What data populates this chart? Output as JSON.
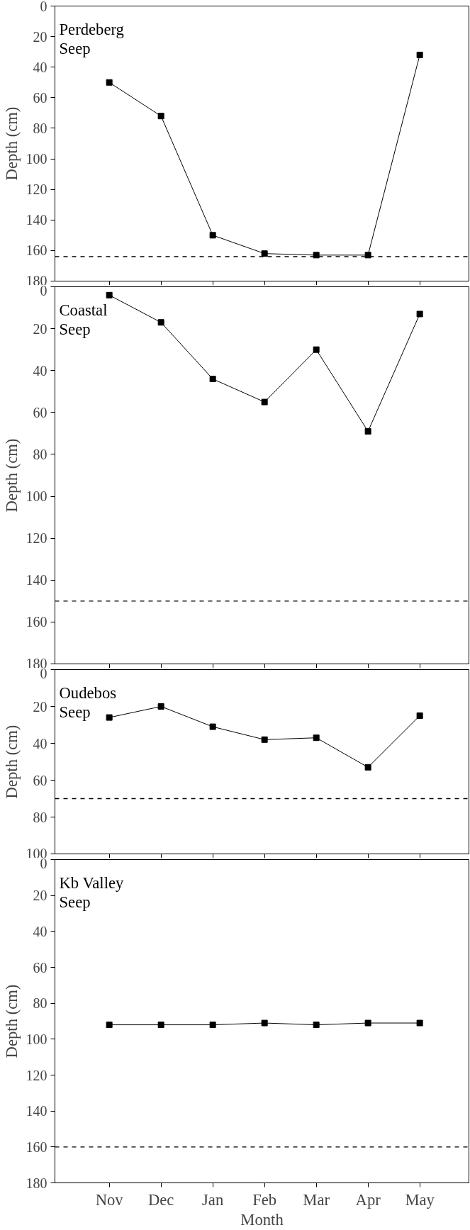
{
  "chart_data": [
    {
      "type": "line",
      "categories": [
        null,
        null,
        null,
        null,
        null,
        null,
        null
      ],
      "ylabel": "Depth (cm)",
      "annotations": [
        "Perdeberg\nSeep"
      ],
      "series": [
        {
          "color": "#000000",
          "values": [
            50,
            72,
            150,
            162,
            163,
            163,
            32
          ]
        }
      ],
      "ylim": [
        180,
        0
      ],
      "yticks": [
        0,
        20,
        40,
        60,
        80,
        100,
        120,
        140,
        160,
        180
      ],
      "ref_lines": [
        {
          "axis": "y",
          "value": 164,
          "line_style": "dashed",
          "color": "#000000"
        }
      ],
      "marker": "square",
      "grid": false,
      "tick_labels": "y"
    },
    {
      "type": "line",
      "categories": [
        null,
        null,
        null,
        null,
        null,
        null,
        null
      ],
      "ylabel": "Depth (cm)",
      "annotations": [
        "Coastal\nSeep"
      ],
      "series": [
        {
          "color": "#000000",
          "values": [
            4,
            17,
            44,
            55,
            30,
            69,
            13
          ]
        }
      ],
      "ylim": [
        180,
        0
      ],
      "yticks": [
        0,
        20,
        40,
        60,
        80,
        100,
        120,
        140,
        160,
        180
      ],
      "ref_lines": [
        {
          "axis": "y",
          "value": 150,
          "line_style": "dashed",
          "color": "#000000"
        }
      ],
      "marker": "square",
      "grid": false,
      "tick_labels": "y"
    },
    {
      "type": "line",
      "categories": [
        null,
        null,
        null,
        null,
        null,
        null,
        null
      ],
      "ylabel": "Depth (cm)",
      "annotations": [
        "Oudebos\nSeep"
      ],
      "series": [
        {
          "color": "#000000",
          "values": [
            26,
            20,
            31,
            38,
            37,
            53,
            25
          ]
        }
      ],
      "ylim": [
        100,
        0
      ],
      "yticks": [
        0,
        20,
        40,
        60,
        80,
        100
      ],
      "ref_lines": [
        {
          "axis": "y",
          "value": 70,
          "line_style": "dashed",
          "color": "#000000"
        }
      ],
      "marker": "square",
      "grid": false,
      "tick_labels": "y"
    },
    {
      "type": "line",
      "categories": [
        "Nov",
        "Dec",
        "Jan",
        "Feb",
        "Mar",
        "Apr",
        "May"
      ],
      "xlabel": "Month",
      "ylabel": "Depth (cm)",
      "annotations": [
        "Kb Valley\nSeep"
      ],
      "series": [
        {
          "color": "#000000",
          "values": [
            92,
            92,
            92,
            91,
            92,
            91,
            91
          ]
        }
      ],
      "ylim": [
        180,
        0
      ],
      "yticks": [
        0,
        20,
        40,
        60,
        80,
        100,
        120,
        140,
        160,
        180
      ],
      "ref_lines": [
        {
          "axis": "y",
          "value": 160,
          "line_style": "dashed",
          "color": "#000000"
        }
      ],
      "marker": "square",
      "grid": false
    }
  ]
}
